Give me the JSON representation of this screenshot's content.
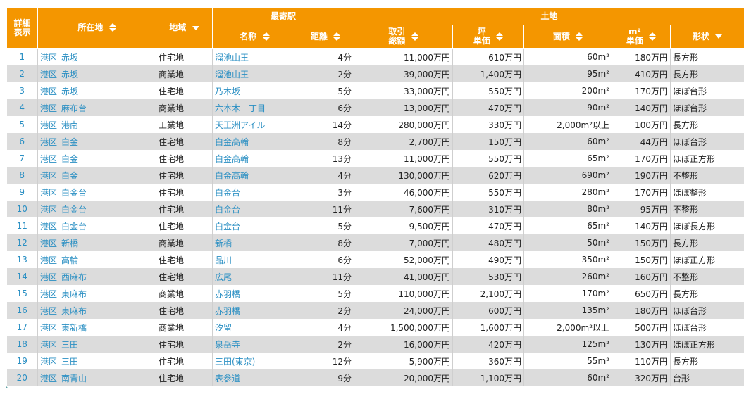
{
  "header": {
    "detail": [
      "詳細",
      "表示"
    ],
    "location": "所在地",
    "region": "地域",
    "station": "最寄駅",
    "land": "土地",
    "station_name": "名称",
    "distance": "距離",
    "price_total": [
      "取引",
      "総額"
    ],
    "tsubo": [
      "坪",
      "単価"
    ],
    "area": "面積",
    "m2": [
      "m²",
      "単価"
    ],
    "shape": "形状"
  },
  "rows": [
    {
      "no": "1",
      "ward": "港区",
      "town": "赤坂",
      "region": "住宅地",
      "station": "溜池山王",
      "dist": "4分",
      "total": "11,000万円",
      "tsubo": "610万円",
      "area": "60m²",
      "m2": "180万円",
      "shape": "長方形"
    },
    {
      "no": "2",
      "ward": "港区",
      "town": "赤坂",
      "region": "商業地",
      "station": "溜池山王",
      "dist": "2分",
      "total": "39,000万円",
      "tsubo": "1,400万円",
      "area": "95m²",
      "m2": "410万円",
      "shape": "長方形"
    },
    {
      "no": "3",
      "ward": "港区",
      "town": "赤坂",
      "region": "住宅地",
      "station": "乃木坂",
      "dist": "5分",
      "total": "33,000万円",
      "tsubo": "550万円",
      "area": "200m²",
      "m2": "170万円",
      "shape": "ほぼ台形"
    },
    {
      "no": "4",
      "ward": "港区",
      "town": "麻布台",
      "region": "商業地",
      "station": "六本木一丁目",
      "dist": "6分",
      "total": "13,000万円",
      "tsubo": "470万円",
      "area": "90m²",
      "m2": "140万円",
      "shape": "ほぼ台形"
    },
    {
      "no": "5",
      "ward": "港区",
      "town": "港南",
      "region": "工業地",
      "station": "天王洲アイル",
      "dist": "14分",
      "total": "280,000万円",
      "tsubo": "330万円",
      "area": "2,000m²以上",
      "m2": "100万円",
      "shape": "長方形"
    },
    {
      "no": "6",
      "ward": "港区",
      "town": "白金",
      "region": "住宅地",
      "station": "白金高輪",
      "dist": "8分",
      "total": "2,700万円",
      "tsubo": "150万円",
      "area": "60m²",
      "m2": "44万円",
      "shape": "ほぼ台形"
    },
    {
      "no": "7",
      "ward": "港区",
      "town": "白金",
      "region": "住宅地",
      "station": "白金高輪",
      "dist": "13分",
      "total": "11,000万円",
      "tsubo": "550万円",
      "area": "65m²",
      "m2": "170万円",
      "shape": "ほぼ正方形"
    },
    {
      "no": "8",
      "ward": "港区",
      "town": "白金",
      "region": "住宅地",
      "station": "白金高輪",
      "dist": "4分",
      "total": "130,000万円",
      "tsubo": "620万円",
      "area": "690m²",
      "m2": "190万円",
      "shape": "不整形"
    },
    {
      "no": "9",
      "ward": "港区",
      "town": "白金台",
      "region": "住宅地",
      "station": "白金台",
      "dist": "3分",
      "total": "46,000万円",
      "tsubo": "550万円",
      "area": "280m²",
      "m2": "170万円",
      "shape": "ほぼ整形"
    },
    {
      "no": "10",
      "ward": "港区",
      "town": "白金台",
      "region": "住宅地",
      "station": "白金台",
      "dist": "11分",
      "total": "7,600万円",
      "tsubo": "310万円",
      "area": "80m²",
      "m2": "95万円",
      "shape": "不整形"
    },
    {
      "no": "11",
      "ward": "港区",
      "town": "白金台",
      "region": "住宅地",
      "station": "白金台",
      "dist": "5分",
      "total": "9,500万円",
      "tsubo": "470万円",
      "area": "65m²",
      "m2": "140万円",
      "shape": "ほぼ長方形"
    },
    {
      "no": "12",
      "ward": "港区",
      "town": "新橋",
      "region": "商業地",
      "station": "新橋",
      "dist": "8分",
      "total": "7,000万円",
      "tsubo": "480万円",
      "area": "50m²",
      "m2": "150万円",
      "shape": "長方形"
    },
    {
      "no": "13",
      "ward": "港区",
      "town": "高輪",
      "region": "住宅地",
      "station": "品川",
      "dist": "6分",
      "total": "52,000万円",
      "tsubo": "490万円",
      "area": "350m²",
      "m2": "150万円",
      "shape": "ほぼ正方形"
    },
    {
      "no": "14",
      "ward": "港区",
      "town": "西麻布",
      "region": "住宅地",
      "station": "広尾",
      "dist": "11分",
      "total": "41,000万円",
      "tsubo": "530万円",
      "area": "260m²",
      "m2": "160万円",
      "shape": "不整形"
    },
    {
      "no": "15",
      "ward": "港区",
      "town": "東麻布",
      "region": "商業地",
      "station": "赤羽橋",
      "dist": "5分",
      "total": "110,000万円",
      "tsubo": "2,100万円",
      "area": "170m²",
      "m2": "650万円",
      "shape": "長方形"
    },
    {
      "no": "16",
      "ward": "港区",
      "town": "東麻布",
      "region": "住宅地",
      "station": "赤羽橋",
      "dist": "2分",
      "total": "24,000万円",
      "tsubo": "600万円",
      "area": "135m²",
      "m2": "180万円",
      "shape": "ほぼ台形"
    },
    {
      "no": "17",
      "ward": "港区",
      "town": "東新橋",
      "region": "商業地",
      "station": "汐留",
      "dist": "4分",
      "total": "1,500,000万円",
      "tsubo": "1,600万円",
      "area": "2,000m²以上",
      "m2": "500万円",
      "shape": "ほぼ台形"
    },
    {
      "no": "18",
      "ward": "港区",
      "town": "三田",
      "region": "住宅地",
      "station": "泉岳寺",
      "dist": "2分",
      "total": "16,000万円",
      "tsubo": "420万円",
      "area": "125m²",
      "m2": "130万円",
      "shape": "ほぼ正方形"
    },
    {
      "no": "19",
      "ward": "港区",
      "town": "三田",
      "region": "住宅地",
      "station": "三田(東京)",
      "dist": "12分",
      "total": "5,900万円",
      "tsubo": "360万円",
      "area": "55m²",
      "m2": "110万円",
      "shape": "長方形"
    },
    {
      "no": "20",
      "ward": "港区",
      "town": "南青山",
      "region": "住宅地",
      "station": "表参道",
      "dist": "9分",
      "total": "20,000万円",
      "tsubo": "1,100万円",
      "area": "60m²",
      "m2": "320万円",
      "shape": "台形"
    }
  ],
  "colors": {
    "header_bg": "#f49600",
    "link": "#2a8fc3",
    "row_alt": "#dcdcdc"
  }
}
